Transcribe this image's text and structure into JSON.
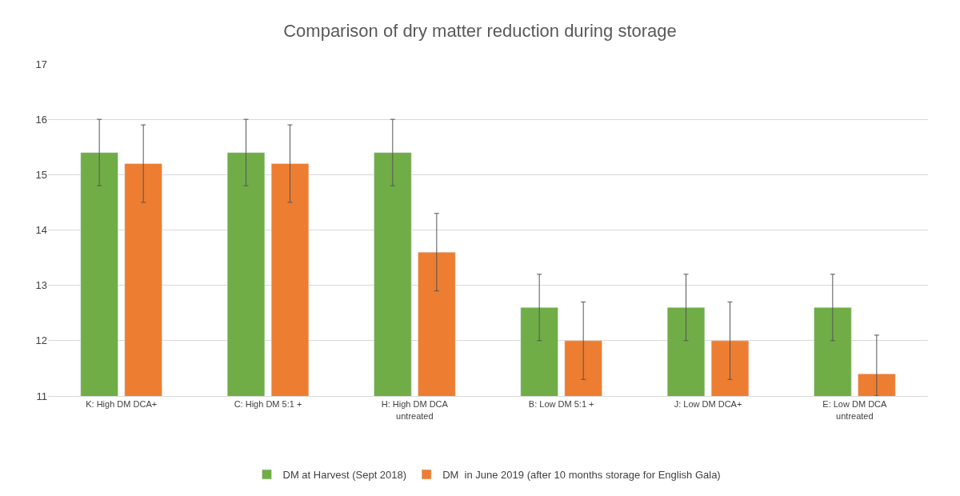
{
  "chart_data": {
    "type": "bar",
    "title": "Comparison of dry matter reduction during storage",
    "categories": [
      "K: High DM DCA+",
      "C: High DM 5:1 +",
      "H: High DM DCA\nuntreated",
      "B: Low DM 5:1 +",
      "J: Low DM DCA+",
      "E: Low DM DCA\nuntreated"
    ],
    "series": [
      {
        "name": "DM at Harvest (Sept 2018)",
        "color": "#70ad47",
        "values": [
          15.4,
          15.4,
          15.4,
          12.6,
          12.6,
          12.6
        ],
        "errors": [
          0.6,
          0.6,
          0.6,
          0.6,
          0.6,
          0.6
        ]
      },
      {
        "name": "DM  in June 2019 (after 10 months storage for English Gala)",
        "color": "#ed7d31",
        "values": [
          15.2,
          15.2,
          13.6,
          12.0,
          12.0,
          11.4
        ],
        "errors": [
          0.7,
          0.7,
          0.7,
          0.7,
          0.7,
          [
            11.0,
            12.1
          ]
        ]
      }
    ],
    "ylim": [
      11,
      17
    ],
    "yticks": [
      11,
      12,
      13,
      14,
      15,
      16,
      17
    ],
    "grid": "y",
    "legend": "bottom"
  }
}
